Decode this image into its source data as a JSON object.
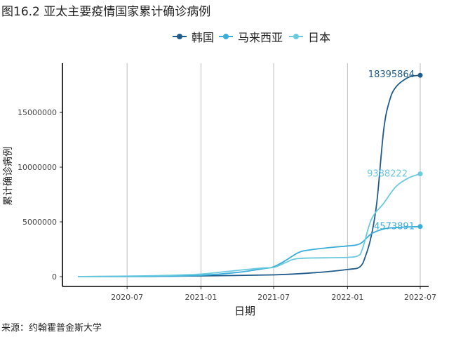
{
  "header": {
    "title": "图16.2 亚太主要疫情国家累计确诊病例"
  },
  "footer": {
    "source": "来源：约翰霍普金斯大学"
  },
  "chart_data": {
    "type": "line",
    "title": "图16.2 亚太主要疫情国家累计确诊病例",
    "xlabel": "日期",
    "ylabel": "累计确诊病例",
    "xlim": [
      "2020-01-22",
      "2022-07-22"
    ],
    "ylim": [
      -900000,
      19500000
    ],
    "grid": {
      "vertical": true,
      "horizontal": false
    },
    "legend_position": "top",
    "x_ticks": [
      "2020-07",
      "2021-01",
      "2021-07",
      "2022-01",
      "2022-07"
    ],
    "y_ticks": [
      0,
      5000000,
      10000000,
      15000000
    ],
    "y_tick_labels": [
      "0",
      "5000000",
      "10000000",
      "15000000"
    ],
    "series": [
      {
        "name": "韩国",
        "color": "#1f5c8b",
        "end_label": "18395864",
        "points": [
          [
            "2020-03-01",
            5000
          ],
          [
            "2020-09-01",
            25000
          ],
          [
            "2021-01-01",
            65000
          ],
          [
            "2021-07-01",
            160000
          ],
          [
            "2021-10-01",
            330000
          ],
          [
            "2022-01-01",
            650000
          ],
          [
            "2022-02-01",
            900000
          ],
          [
            "2022-02-15",
            1900000
          ],
          [
            "2022-03-01",
            3700000
          ],
          [
            "2022-03-15",
            6800000
          ],
          [
            "2022-04-01",
            13400000
          ],
          [
            "2022-04-15",
            16000000
          ],
          [
            "2022-05-01",
            17300000
          ],
          [
            "2022-06-01",
            18200000
          ],
          [
            "2022-07-01",
            18395864
          ]
        ]
      },
      {
        "name": "马来西亚",
        "color": "#3aaed8",
        "end_label": "4573891",
        "points": [
          [
            "2020-03-01",
            0
          ],
          [
            "2020-09-01",
            10000
          ],
          [
            "2021-01-01",
            120000
          ],
          [
            "2021-04-01",
            380000
          ],
          [
            "2021-06-01",
            700000
          ],
          [
            "2021-07-01",
            900000
          ],
          [
            "2021-08-01",
            1500000
          ],
          [
            "2021-09-01",
            2200000
          ],
          [
            "2021-10-01",
            2450000
          ],
          [
            "2021-12-01",
            2700000
          ],
          [
            "2022-01-01",
            2800000
          ],
          [
            "2022-02-01",
            3000000
          ],
          [
            "2022-03-01",
            3900000
          ],
          [
            "2022-04-01",
            4350000
          ],
          [
            "2022-05-01",
            4480000
          ],
          [
            "2022-07-01",
            4573891
          ]
        ]
      },
      {
        "name": "日本",
        "color": "#6ccadf",
        "end_label": "9388222",
        "points": [
          [
            "2020-03-01",
            0
          ],
          [
            "2020-09-01",
            80000
          ],
          [
            "2021-01-01",
            230000
          ],
          [
            "2021-03-01",
            450000
          ],
          [
            "2021-06-01",
            780000
          ],
          [
            "2021-07-01",
            830000
          ],
          [
            "2021-08-01",
            1300000
          ],
          [
            "2021-09-01",
            1650000
          ],
          [
            "2021-12-01",
            1730000
          ],
          [
            "2022-01-01",
            1750000
          ],
          [
            "2022-02-01",
            2000000
          ],
          [
            "2022-03-01",
            5200000
          ],
          [
            "2022-04-01",
            6700000
          ],
          [
            "2022-05-01",
            8200000
          ],
          [
            "2022-06-01",
            9000000
          ],
          [
            "2022-07-01",
            9388222
          ]
        ]
      }
    ]
  }
}
